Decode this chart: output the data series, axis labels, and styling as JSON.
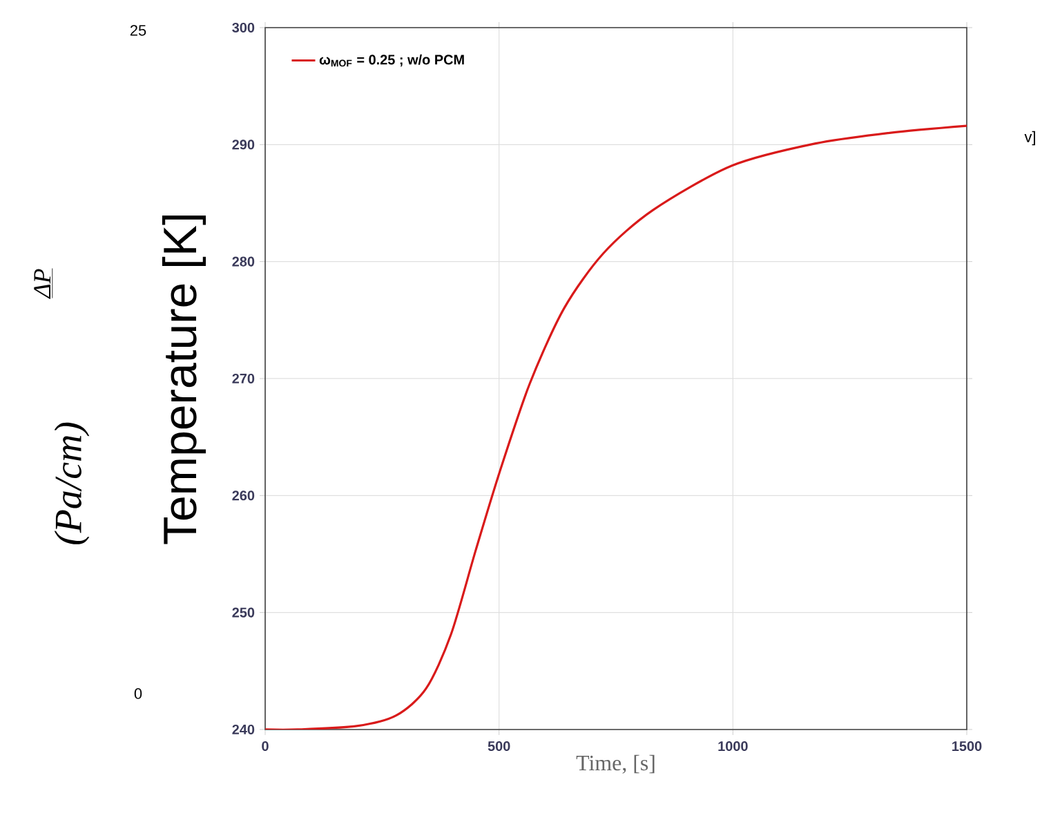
{
  "chart_data": {
    "type": "line",
    "xlabel": "Time, [s]",
    "ylabel": "Temperature [K]",
    "x": [
      0,
      69,
      196,
      280,
      344,
      397,
      450,
      502,
      566,
      639,
      723,
      829,
      998,
      1177,
      1335,
      1500
    ],
    "series": [
      {
        "name": "ω$_{MOF}$ = 0.25 ; w/o PCM",
        "color": "#d91a1a",
        "values": [
          240.0,
          240.0,
          240.3,
          241.2,
          243.5,
          248.1,
          255.3,
          262.1,
          269.6,
          276.0,
          280.7,
          284.4,
          288.2,
          290.1,
          291.0,
          291.6
        ]
      }
    ],
    "xlim": [
      0,
      1500
    ],
    "ylim": [
      240,
      300
    ],
    "xticks": [
      0,
      500,
      1000,
      1500
    ],
    "yticks": [
      240,
      250,
      260,
      270,
      280,
      290,
      300
    ],
    "grid": true,
    "legend": "top left",
    "marker": "none",
    "line_style": "solid",
    "annotations": [
      "ΔP",
      "(Pa/cm)",
      "25",
      "0",
      "v]"
    ]
  }
}
